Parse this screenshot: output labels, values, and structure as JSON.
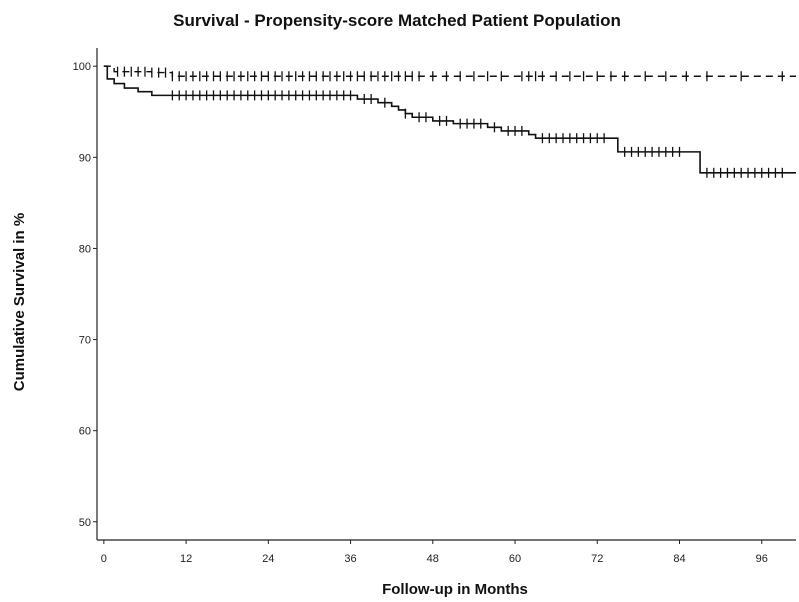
{
  "chart_data": {
    "type": "line",
    "subtype": "kaplan-meier",
    "title": "Survival - Propensity-score Matched Patient Population",
    "xlabel": "Follow-up in Months",
    "ylabel": "Cumulative Survival in %",
    "xlim": [
      -1,
      101
    ],
    "ylim": [
      48,
      102
    ],
    "x_ticks": [
      0,
      12,
      24,
      36,
      48,
      60,
      72,
      84,
      96
    ],
    "y_ticks": [
      50,
      60,
      70,
      80,
      90,
      100
    ],
    "grid": false,
    "legend": "none",
    "series": [
      {
        "style": "dashed",
        "step_points": [
          [
            0,
            100
          ],
          [
            1.5,
            99.4
          ],
          [
            7,
            99.3
          ],
          [
            10,
            98.9
          ],
          [
            101,
            98.9
          ]
        ],
        "censor_x": [
          2,
          3,
          4,
          5,
          6,
          7,
          8,
          9,
          10,
          11,
          12,
          13,
          14,
          15,
          16,
          17,
          18,
          19,
          20,
          21,
          22,
          23,
          24,
          25,
          26,
          27,
          28,
          29,
          30,
          31,
          32,
          33,
          34,
          35,
          36,
          37,
          38,
          39,
          40,
          41,
          42,
          43,
          44,
          45,
          46,
          48,
          50,
          52,
          54,
          56,
          58,
          61,
          62,
          63,
          64,
          66,
          68,
          70,
          72,
          74,
          76,
          79,
          82,
          85,
          88,
          93,
          99
        ]
      },
      {
        "style": "solid",
        "step_points": [
          [
            0,
            100
          ],
          [
            0.5,
            98.6
          ],
          [
            1.5,
            98.1
          ],
          [
            3,
            97.6
          ],
          [
            5,
            97.2
          ],
          [
            7,
            96.8
          ],
          [
            36,
            96.8
          ],
          [
            37,
            96.4
          ],
          [
            40,
            96.0
          ],
          [
            42,
            95.6
          ],
          [
            43,
            95.2
          ],
          [
            44,
            94.8
          ],
          [
            45,
            94.4
          ],
          [
            48,
            94.0
          ],
          [
            51,
            93.7
          ],
          [
            56,
            93.3
          ],
          [
            58,
            92.9
          ],
          [
            62,
            92.5
          ],
          [
            63,
            92.1
          ],
          [
            74,
            92.1
          ],
          [
            75,
            90.6
          ],
          [
            86,
            90.6
          ],
          [
            87,
            88.3
          ],
          [
            101,
            88.3
          ]
        ],
        "censor_x": [
          10,
          11,
          12,
          13,
          14,
          15,
          16,
          17,
          18,
          19,
          20,
          21,
          22,
          23,
          24,
          25,
          26,
          27,
          28,
          29,
          30,
          31,
          32,
          33,
          34,
          35,
          36,
          38,
          39,
          41,
          44,
          46,
          47,
          49,
          50,
          52,
          53,
          54,
          55,
          57,
          59,
          60,
          61,
          64,
          65,
          66,
          67,
          68,
          69,
          70,
          71,
          72,
          73,
          76,
          77,
          78,
          79,
          80,
          81,
          82,
          83,
          84,
          88,
          89,
          90,
          91,
          92,
          93,
          94,
          95,
          96,
          97,
          98,
          99
        ]
      }
    ]
  }
}
